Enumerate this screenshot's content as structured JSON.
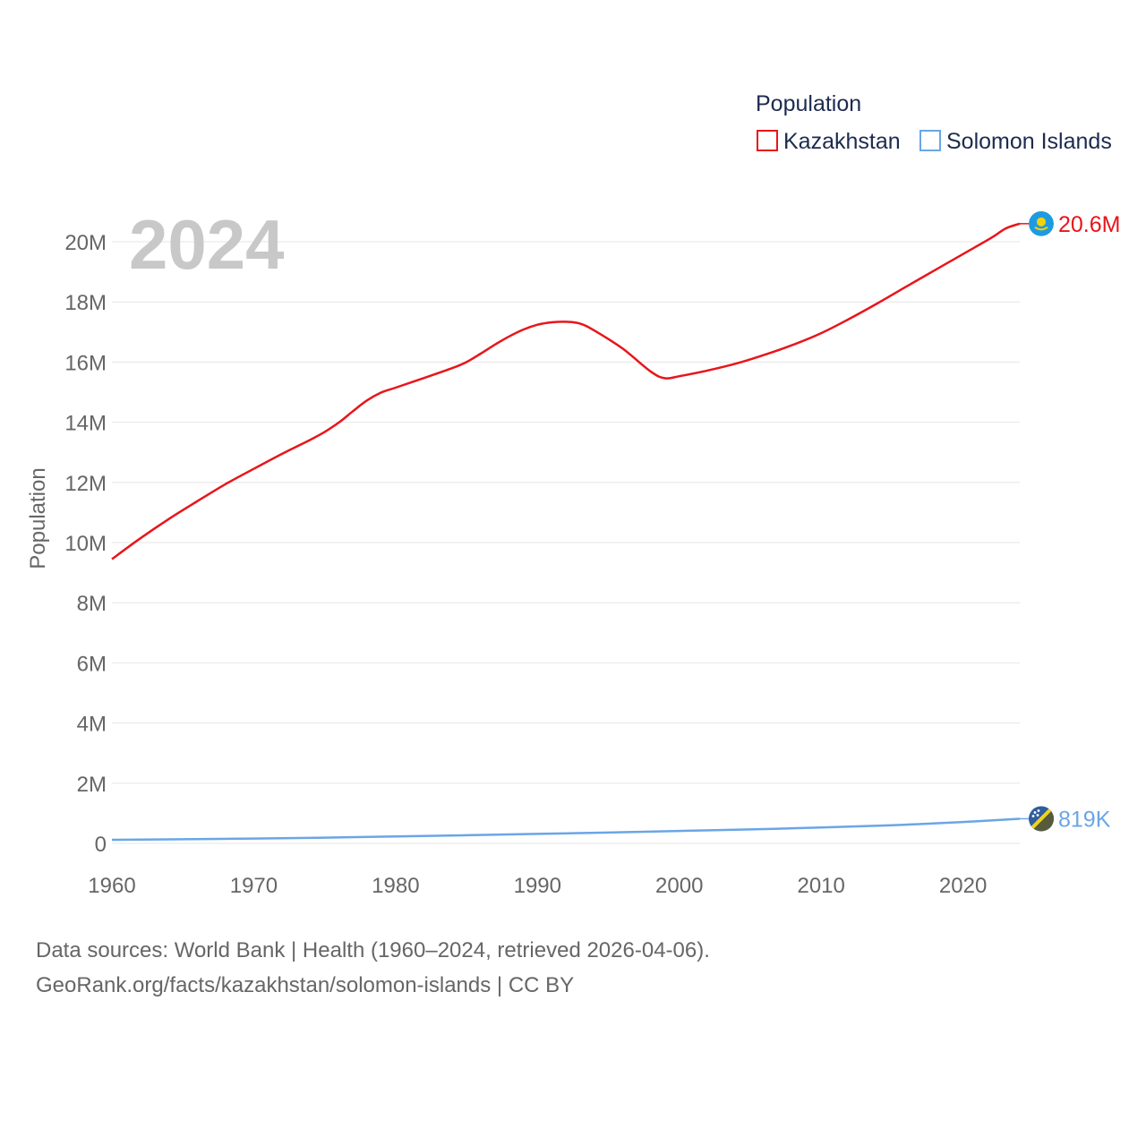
{
  "chart_data": {
    "type": "line",
    "legend_title": "Population",
    "ylabel": "Population",
    "year_label": "2024",
    "x_ticks": [
      1960,
      1970,
      1980,
      1990,
      2000,
      2010,
      2020
    ],
    "x_tick_labels": [
      "1960",
      "1970",
      "1980",
      "1990",
      "2000",
      "2010",
      "2020"
    ],
    "xlim": [
      1960,
      2024
    ],
    "y_ticks": [
      0,
      2000000,
      4000000,
      6000000,
      8000000,
      10000000,
      12000000,
      14000000,
      16000000,
      18000000,
      20000000
    ],
    "y_tick_labels": [
      "0",
      "2M",
      "4M",
      "6M",
      "8M",
      "10M",
      "12M",
      "14M",
      "16M",
      "18M",
      "20M"
    ],
    "ylim": [
      0,
      20000000
    ],
    "grid": true,
    "legend_position": "top-right",
    "series": [
      {
        "name": "Kazakhstan",
        "color": "#e8151b",
        "end_label": "20.6M",
        "flag_icon": "kazakhstan-flag-icon",
        "x": [
          1960,
          1962,
          1964,
          1966,
          1968,
          1970,
          1972,
          1974,
          1975,
          1976,
          1977,
          1978,
          1979,
          1980,
          1982,
          1984,
          1985,
          1986,
          1987,
          1988,
          1989,
          1990,
          1991,
          1992,
          1993,
          1994,
          1996,
          1998,
          1999,
          2000,
          2002,
          2004,
          2006,
          2008,
          2010,
          2012,
          2014,
          2016,
          2018,
          2020,
          2022,
          2023,
          2024
        ],
        "values": [
          9450000,
          10140000,
          10780000,
          11370000,
          11940000,
          12450000,
          12950000,
          13420000,
          13680000,
          13990000,
          14370000,
          14730000,
          14990000,
          15150000,
          15470000,
          15800000,
          16000000,
          16280000,
          16580000,
          16850000,
          17080000,
          17240000,
          17320000,
          17340000,
          17280000,
          17050000,
          16450000,
          15680000,
          15460000,
          15530000,
          15720000,
          15950000,
          16240000,
          16570000,
          16960000,
          17440000,
          17960000,
          18510000,
          19050000,
          19590000,
          20130000,
          20440000,
          20600000
        ]
      },
      {
        "name": "Solomon Islands",
        "color": "#6aa6e6",
        "end_label": "819K",
        "flag_icon": "solomon-islands-flag-icon",
        "x": [
          1960,
          1965,
          1970,
          1975,
          1980,
          1985,
          1990,
          1995,
          2000,
          2005,
          2010,
          2015,
          2020,
          2024
        ],
        "values": [
          118000,
          138000,
          160000,
          189000,
          228000,
          270000,
          314000,
          361000,
          413000,
          465000,
          526000,
          603000,
          712000,
          819000
        ]
      }
    ]
  },
  "source": {
    "line1": "Data sources: World Bank | Health (1960–2024, retrieved 2026-04-06).",
    "line2": "GeoRank.org/facts/kazakhstan/solomon-islands | CC BY"
  }
}
